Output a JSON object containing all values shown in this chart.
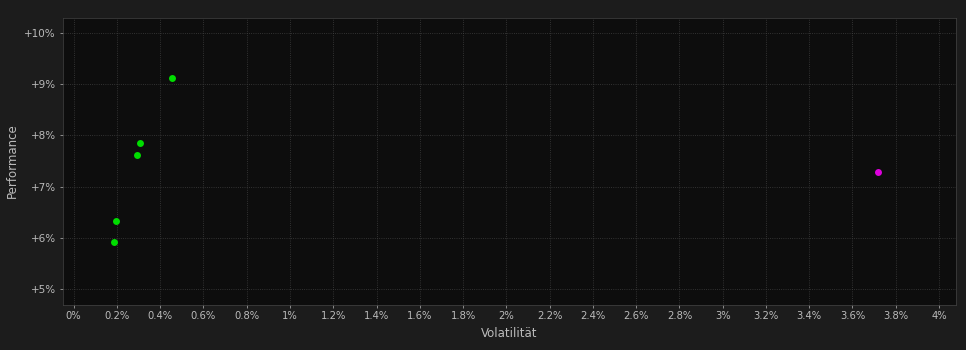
{
  "background_color": "#1c1c1c",
  "plot_bg_color": "#0d0d0d",
  "grid_color": "#444444",
  "text_color": "#bbbbbb",
  "xlabel": "Volatilität",
  "ylabel": "Performance",
  "x_ticks": [
    0,
    0.002,
    0.004,
    0.006,
    0.008,
    0.01,
    0.012,
    0.014,
    0.016,
    0.018,
    0.02,
    0.022,
    0.024,
    0.026,
    0.028,
    0.03,
    0.032,
    0.034,
    0.036,
    0.038,
    0.04
  ],
  "x_tick_labels": [
    "0%",
    "0.2%",
    "0.4%",
    "0.6%",
    "0.8%",
    "1%",
    "1.2%",
    "1.4%",
    "1.6%",
    "1.8%",
    "2%",
    "2.2%",
    "2.4%",
    "2.6%",
    "2.8%",
    "3%",
    "3.2%",
    "3.4%",
    "3.6%",
    "3.8%",
    "4%"
  ],
  "y_ticks": [
    0.05,
    0.06,
    0.07,
    0.08,
    0.09,
    0.1
  ],
  "y_tick_labels": [
    "+5%",
    "+6%",
    "+7%",
    "+8%",
    "+9%",
    "+10%"
  ],
  "ylim": [
    0.047,
    0.103
  ],
  "xlim": [
    -0.0005,
    0.0408
  ],
  "green_points": [
    [
      0.00195,
      0.0632
    ],
    [
      0.00185,
      0.0592
    ],
    [
      0.00305,
      0.0785
    ],
    [
      0.00295,
      0.0762
    ],
    [
      0.00455,
      0.0912
    ]
  ],
  "magenta_points": [
    [
      0.0372,
      0.0728
    ]
  ],
  "green_color": "#00dd00",
  "magenta_color": "#dd00dd",
  "marker_size": 5
}
